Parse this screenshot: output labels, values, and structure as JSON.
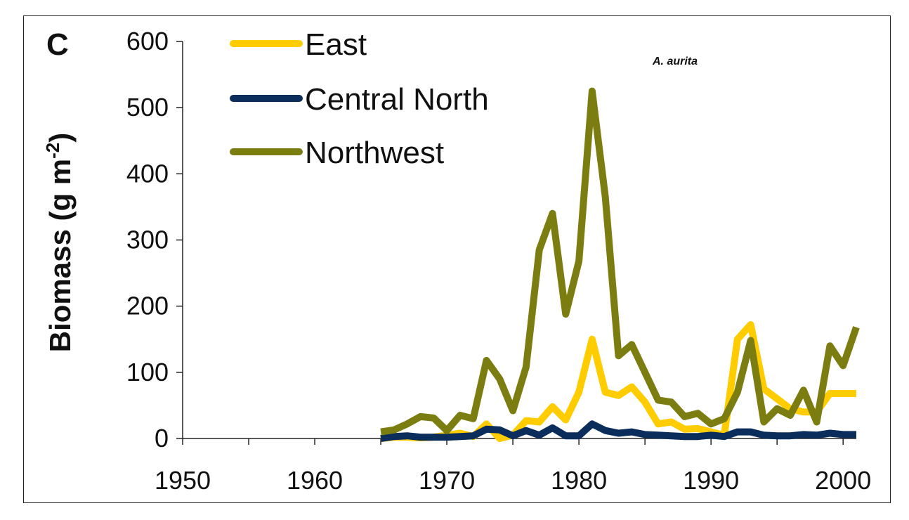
{
  "panel_label": "C",
  "species_label": "A. aurita",
  "chart_data": {
    "type": "line",
    "title": "",
    "xlabel": "",
    "ylabel": "Biomass (g m",
    "ylabel_superscript": "-2",
    "ylabel_suffix": ")",
    "xlim": [
      1950,
      2001
    ],
    "ylim": [
      0,
      600
    ],
    "xticks": [
      1950,
      1955,
      1960,
      1965,
      1970,
      1975,
      1980,
      1985,
      1990,
      1995,
      2000
    ],
    "xtick_labels": [
      "1950",
      "1960",
      "1970",
      "1980",
      "1990",
      "2000"
    ],
    "yticks": [
      0,
      100,
      200,
      300,
      400,
      500,
      600
    ],
    "ytick_labels": [
      "0",
      "100",
      "200",
      "300",
      "400",
      "500",
      "600"
    ],
    "grid": false,
    "legend_position": "top-left",
    "x": [
      1965,
      1966,
      1967,
      1968,
      1969,
      1970,
      1971,
      1972,
      1973,
      1974,
      1975,
      1976,
      1977,
      1978,
      1979,
      1980,
      1981,
      1982,
      1983,
      1984,
      1985,
      1986,
      1987,
      1988,
      1989,
      1990,
      1991,
      1992,
      1993,
      1994,
      1995,
      1996,
      1997,
      1998,
      1999,
      2000,
      2001
    ],
    "series": [
      {
        "name": "East",
        "color": "#FFCC00",
        "values": [
          0,
          2,
          2,
          1,
          2,
          5,
          8,
          3,
          22,
          0,
          5,
          27,
          25,
          48,
          28,
          70,
          150,
          70,
          65,
          78,
          55,
          22,
          25,
          14,
          15,
          10,
          5,
          150,
          172,
          75,
          60,
          45,
          40,
          40,
          68,
          68,
          68
        ]
      },
      {
        "name": "Central North",
        "color": "#0B2D5B",
        "values": [
          0,
          3,
          4,
          2,
          2,
          2,
          3,
          4,
          14,
          13,
          4,
          12,
          5,
          16,
          4,
          4,
          22,
          12,
          8,
          10,
          6,
          5,
          4,
          3,
          3,
          5,
          3,
          10,
          10,
          5,
          4,
          4,
          6,
          5,
          8,
          6,
          6
        ]
      },
      {
        "name": "Northwest",
        "color": "#7B7D10",
        "values": [
          10,
          13,
          22,
          33,
          31,
          12,
          35,
          30,
          118,
          90,
          42,
          108,
          285,
          340,
          188,
          268,
          525,
          365,
          125,
          142,
          100,
          58,
          55,
          33,
          38,
          22,
          30,
          70,
          148,
          25,
          45,
          35,
          73,
          25,
          140,
          110,
          168
        ]
      }
    ]
  }
}
